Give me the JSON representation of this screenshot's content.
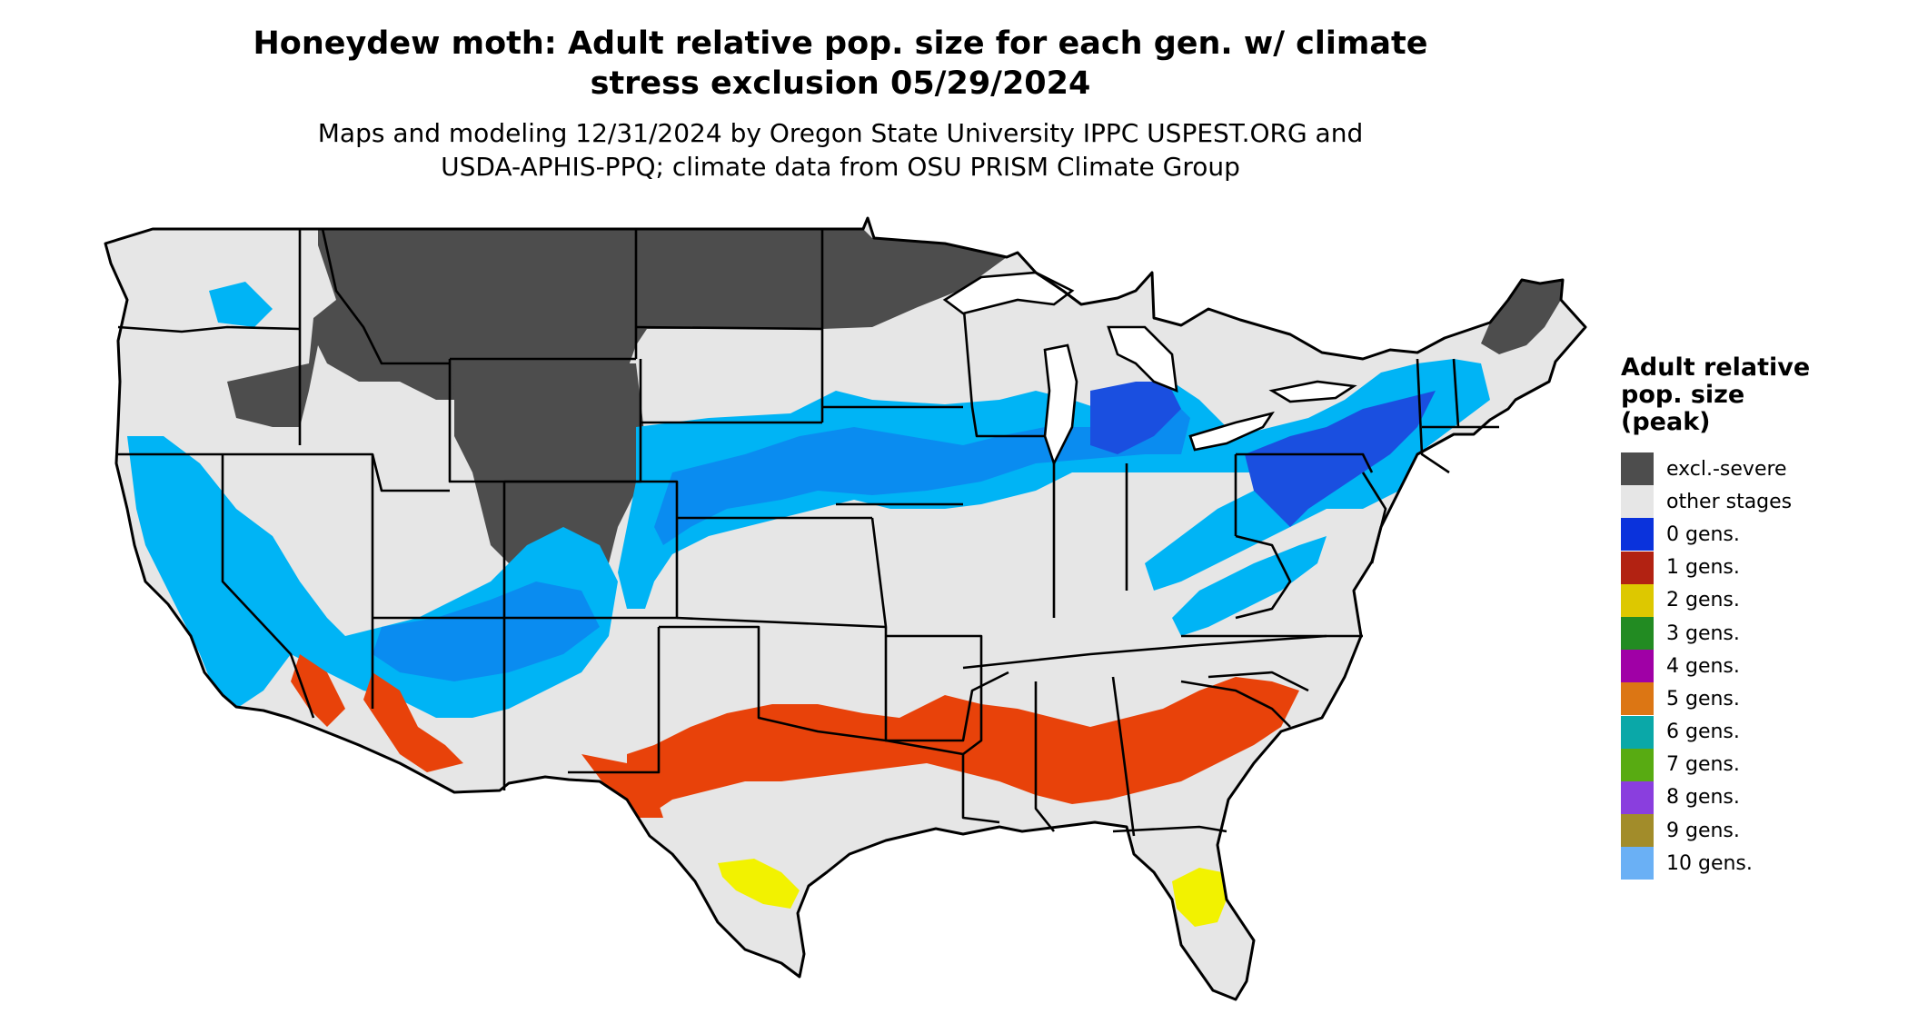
{
  "title_line1": "Honeydew moth: Adult relative pop. size for each gen. w/ climate",
  "title_line2": "stress exclusion 05/29/2024",
  "subtitle_line1": "Maps and modeling 12/31/2024 by Oregon State University IPPC USPEST.ORG and",
  "subtitle_line2": "USDA-APHIS-PPQ; climate data from OSU PRISM Climate Group",
  "legend": {
    "title_lines": [
      "Adult relative",
      "pop. size",
      "(peak)"
    ],
    "items": [
      {
        "label": "excl.-severe",
        "color": "#4d4d4d"
      },
      {
        "label": "other stages",
        "color": "#e6e6e6"
      },
      {
        "label": "0 gens.",
        "color": "#0a32dc"
      },
      {
        "label": "1 gens.",
        "color": "#b22212"
      },
      {
        "label": "2 gens.",
        "color": "#ddc800"
      },
      {
        "label": "3 gens.",
        "color": "#228b22"
      },
      {
        "label": "4 gens.",
        "color": "#a000a6"
      },
      {
        "label": "5 gens.",
        "color": "#dc7614"
      },
      {
        "label": "6 gens.",
        "color": "#0aa8a8"
      },
      {
        "label": "7 gens.",
        "color": "#58ab12"
      },
      {
        "label": "8 gens.",
        "color": "#8a3ede"
      },
      {
        "label": "9 gens.",
        "color": "#a28c2a"
      },
      {
        "label": "10 gens.",
        "color": "#6ab0f5"
      }
    ]
  },
  "map_colors": {
    "base": "#e6e6e6",
    "excluded": "#4d4d4d",
    "blue_light": "#00b4f5",
    "blue_mid": "#0a8cf0",
    "blue_dark": "#1a4fe0",
    "orange_red": "#e8420a",
    "yellow": "#f2f200",
    "green": "#3cc03c",
    "border": "#000000"
  }
}
